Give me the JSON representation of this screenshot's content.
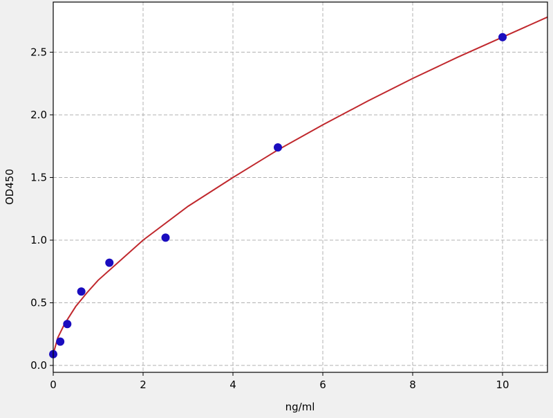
{
  "chart_data": {
    "type": "scatter",
    "title": "",
    "xlabel": "ng/ml",
    "ylabel": "OD450",
    "xlim": [
      0,
      11
    ],
    "ylim": [
      -0.055,
      2.9
    ],
    "xticks": [
      0,
      2,
      4,
      6,
      8,
      10
    ],
    "xtick_labels": [
      "0",
      "2",
      "4",
      "6",
      "8",
      "10"
    ],
    "yticks": [
      0.0,
      0.5,
      1.0,
      1.5,
      2.0,
      2.5
    ],
    "ytick_labels": [
      "0.0",
      "0.5",
      "1.0",
      "1.5",
      "2.0",
      "2.5"
    ],
    "grid": true,
    "points": {
      "x": [
        0,
        0.156,
        0.3125,
        0.625,
        1.25,
        2.5,
        5,
        10
      ],
      "y": [
        0.09,
        0.19,
        0.33,
        0.59,
        0.82,
        1.02,
        1.74,
        2.62
      ],
      "color": "#1a0dbf"
    },
    "fit_curve": {
      "x": [
        0,
        0.1,
        0.25,
        0.5,
        0.75,
        1,
        1.5,
        2,
        3,
        4,
        5,
        6,
        7,
        8,
        9,
        10,
        11
      ],
      "y": [
        0.09,
        0.22,
        0.33,
        0.47,
        0.58,
        0.68,
        0.84,
        1.0,
        1.27,
        1.5,
        1.72,
        1.92,
        2.11,
        2.29,
        2.46,
        2.62,
        2.78
      ],
      "color": "#c0282d"
    },
    "background": "#f0f0f0",
    "plot_background": "#ffffff"
  }
}
